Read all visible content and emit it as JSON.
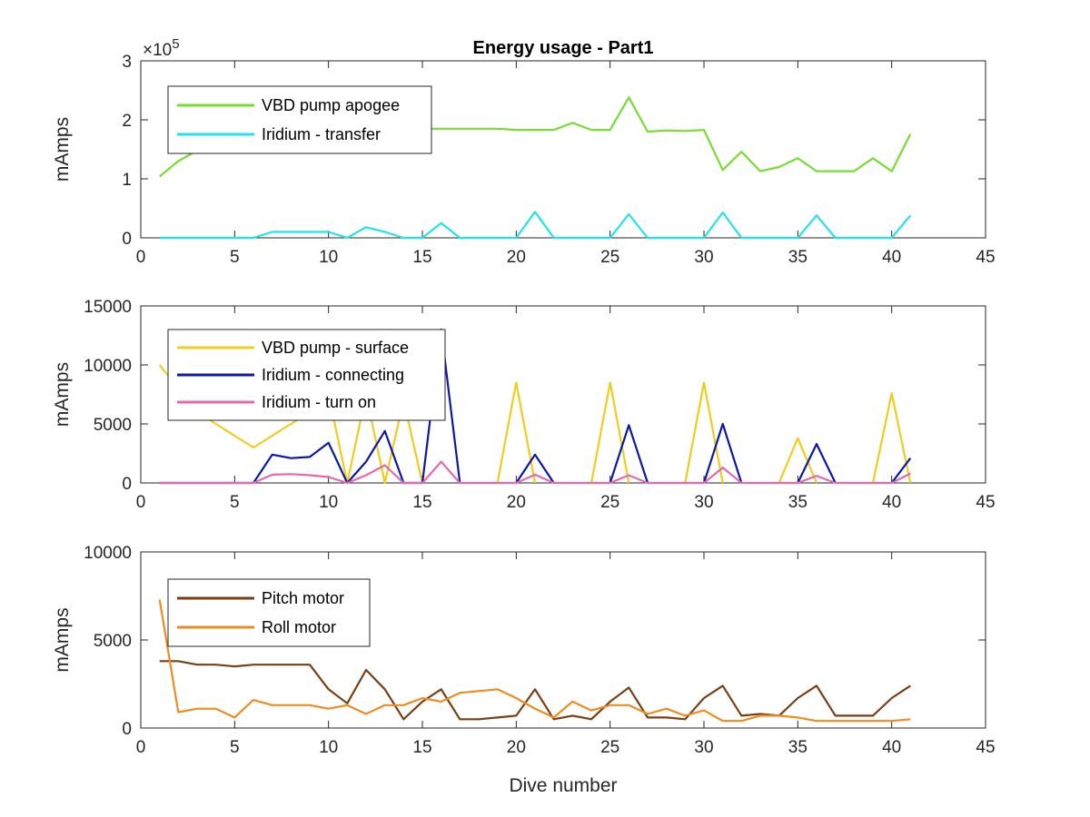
{
  "chart_data": [
    {
      "type": "line",
      "title": "Energy usage - Part1",
      "xlabel": "",
      "ylabel": "mAmps",
      "xlim": [
        0,
        45
      ],
      "ylim": [
        0,
        300000
      ],
      "x_ticks": [
        "0",
        "5",
        "10",
        "15",
        "20",
        "25",
        "30",
        "35",
        "40",
        "45"
      ],
      "y_ticks": [
        "0",
        "1",
        "2",
        "3"
      ],
      "y_exponent_base": "×10",
      "y_exponent_power": "5",
      "legend_position": "top-left",
      "x": [
        1,
        2,
        3,
        4,
        5,
        6,
        7,
        8,
        9,
        10,
        11,
        12,
        13,
        14,
        15,
        16,
        17,
        18,
        19,
        20,
        21,
        22,
        23,
        24,
        25,
        26,
        27,
        28,
        29,
        30,
        31,
        32,
        33,
        34,
        35,
        36,
        37,
        38,
        39,
        40,
        41
      ],
      "series": [
        {
          "name": "VBD pump apogee",
          "color": "#77dd33",
          "values": [
            104000,
            130000,
            148000,
            160000,
            168000,
            172000,
            176000,
            178000,
            180000,
            182000,
            183000,
            184000,
            185000,
            185000,
            185000,
            185000,
            185000,
            185000,
            185000,
            183000,
            183000,
            183000,
            195000,
            183000,
            183000,
            238000,
            180000,
            182000,
            181000,
            183000,
            115000,
            146000,
            113000,
            120000,
            135000,
            113000,
            113000,
            113000,
            135000,
            113000,
            176000
          ]
        },
        {
          "name": "Iridium - transfer",
          "color": "#22e2ee",
          "values": [
            0,
            0,
            0,
            0,
            0,
            0,
            10000,
            10000,
            10000,
            10000,
            0,
            18000,
            10000,
            0,
            0,
            25000,
            0,
            0,
            0,
            0,
            44000,
            0,
            0,
            0,
            0,
            40000,
            0,
            0,
            0,
            0,
            43000,
            0,
            0,
            0,
            0,
            38000,
            0,
            0,
            0,
            0,
            38000
          ]
        }
      ]
    },
    {
      "type": "line",
      "title": "",
      "xlabel": "",
      "ylabel": "mAmps",
      "xlim": [
        0,
        45
      ],
      "ylim": [
        0,
        15000
      ],
      "x_ticks": [
        "0",
        "5",
        "10",
        "15",
        "20",
        "25",
        "30",
        "35",
        "40",
        "45"
      ],
      "y_ticks": [
        "0",
        "5000",
        "10000",
        "15000"
      ],
      "legend_position": "top-left",
      "x": [
        1,
        2,
        3,
        4,
        5,
        6,
        7,
        8,
        9,
        10,
        11,
        12,
        13,
        14,
        15,
        16,
        17,
        18,
        19,
        20,
        21,
        22,
        23,
        24,
        25,
        26,
        27,
        28,
        29,
        30,
        31,
        32,
        33,
        34,
        35,
        36,
        37,
        38,
        39,
        40,
        41
      ],
      "series": [
        {
          "name": "VBD pump - surface",
          "color": "#f2cc1a",
          "values": [
            10000,
            8000,
            6000,
            5000,
            4000,
            3000,
            4000,
            5000,
            6000,
            7500,
            0,
            7500,
            0,
            7000,
            0,
            null,
            null,
            null,
            0,
            8500,
            0,
            null,
            null,
            0,
            8500,
            0,
            null,
            null,
            0,
            8500,
            0,
            null,
            null,
            0,
            3800,
            0,
            null,
            null,
            0,
            7600,
            0
          ]
        },
        {
          "name": "Iridium - connecting",
          "color": "#0a18a8",
          "values": [
            0,
            0,
            0,
            0,
            0,
            0,
            2400,
            2100,
            2200,
            3400,
            0,
            1800,
            4400,
            0,
            0,
            13000,
            0,
            null,
            null,
            0,
            2400,
            0,
            null,
            null,
            0,
            4900,
            0,
            null,
            null,
            0,
            5000,
            0,
            null,
            null,
            0,
            3300,
            0,
            null,
            null,
            0,
            2100
          ]
        },
        {
          "name": "Iridium - turn on",
          "color": "#e36ab2",
          "values": [
            0,
            0,
            0,
            0,
            0,
            0,
            700,
            750,
            650,
            500,
            0,
            650,
            1500,
            0,
            0,
            1800,
            0,
            0,
            0,
            0,
            700,
            0,
            0,
            0,
            0,
            650,
            0,
            0,
            0,
            0,
            1300,
            0,
            0,
            0,
            0,
            600,
            0,
            0,
            0,
            0,
            800
          ]
        }
      ]
    },
    {
      "type": "line",
      "title": "",
      "xlabel": "Dive number",
      "ylabel": "mAmps",
      "xlim": [
        0,
        45
      ],
      "ylim": [
        0,
        10000
      ],
      "x_ticks": [
        "0",
        "5",
        "10",
        "15",
        "20",
        "25",
        "30",
        "35",
        "40",
        "45"
      ],
      "y_ticks": [
        "0",
        "5000",
        "10000"
      ],
      "legend_position": "top-left",
      "x": [
        1,
        2,
        3,
        4,
        5,
        6,
        7,
        8,
        9,
        10,
        11,
        12,
        13,
        14,
        15,
        16,
        17,
        18,
        19,
        20,
        21,
        22,
        23,
        24,
        25,
        26,
        27,
        28,
        29,
        30,
        31,
        32,
        33,
        34,
        35,
        36,
        37,
        38,
        39,
        40,
        41
      ],
      "series": [
        {
          "name": "Pitch motor",
          "color": "#7a3f14",
          "values": [
            3800,
            3800,
            3600,
            3600,
            3500,
            3600,
            3600,
            3600,
            3600,
            2200,
            1400,
            3300,
            2200,
            500,
            1500,
            2200,
            500,
            500,
            600,
            700,
            2200,
            500,
            700,
            500,
            1500,
            2300,
            600,
            600,
            500,
            1700,
            2400,
            700,
            800,
            700,
            1700,
            2400,
            700,
            700,
            700,
            1700,
            2400
          ]
        },
        {
          "name": "Roll motor",
          "color": "#ee8c20",
          "values": [
            7300,
            900,
            1100,
            1100,
            600,
            1600,
            1300,
            1300,
            1300,
            1100,
            1300,
            800,
            1300,
            1300,
            1700,
            1500,
            2000,
            2100,
            2200,
            1700,
            1100,
            600,
            1500,
            1000,
            1300,
            1300,
            800,
            1100,
            700,
            1000,
            400,
            400,
            700,
            700,
            600,
            400,
            400,
            400,
            400,
            400,
            500
          ]
        }
      ]
    }
  ]
}
